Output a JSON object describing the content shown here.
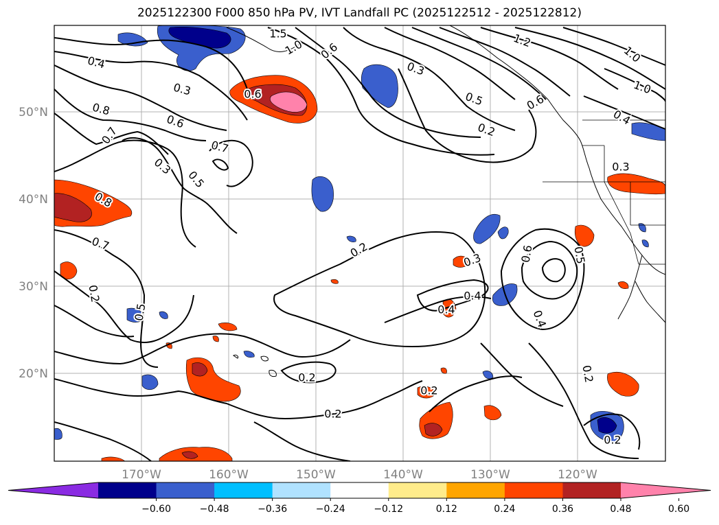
{
  "title": "2025122300 F000 850 hPa PV, IVT Landfall PC (2025122512 - 2025122812)",
  "axes": {
    "lon_labels": [
      "170°W",
      "160°W",
      "150°W",
      "140°W",
      "130°W",
      "120°W"
    ],
    "lat_labels": [
      "50°N",
      "40°N",
      "30°N",
      "20°N"
    ]
  },
  "contour_labels": [
    "0.4",
    "0.3",
    "0.8",
    "0.7",
    "0.6",
    "0.3",
    "0.5",
    "0.7",
    "0.6",
    "0.8",
    "0.7",
    "0.2",
    "0.5",
    "1.5",
    "1.0",
    "0.6",
    "0.3",
    "0.5",
    "0.2",
    "1.2",
    "1.0",
    "1.0",
    "0.6",
    "0.4",
    "0.3",
    "0.2",
    "0.2",
    "0.3",
    "0.4",
    "0.4",
    "0.6",
    "0.5",
    "0.4",
    "0.2",
    "0.2",
    "0.2",
    "0.2"
  ],
  "colorbar": {
    "ticks": [
      "−0.60",
      "−0.48",
      "−0.36",
      "−0.24",
      "−0.12",
      "0.12",
      "0.24",
      "0.36",
      "0.48",
      "0.60"
    ],
    "colors": [
      "#8a2be2",
      "#00008b",
      "#3a5fcd",
      "#00bfff",
      "#b0e2ff",
      "#ffffff",
      "#ffec8b",
      "#ffa500",
      "#ff4500",
      "#b22222",
      "#ff82ab"
    ]
  },
  "fill_colors": {
    "blue_light": "#00bfff",
    "blue_mid": "#3a5fcd",
    "blue_dark": "#00008b",
    "orange": "#ff4500",
    "yellow": "#ffec8b",
    "red": "#b22222",
    "pink": "#ff82ab"
  }
}
